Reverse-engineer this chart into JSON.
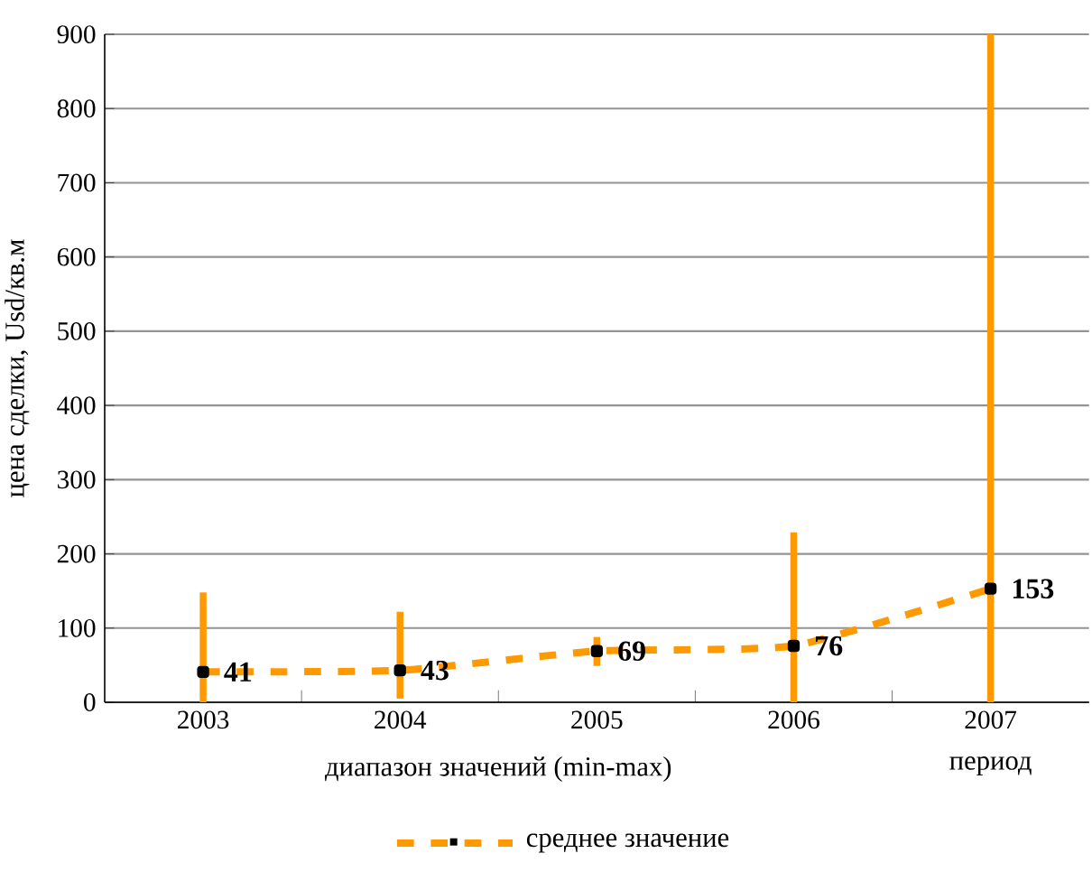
{
  "chart_data": {
    "type": "bar",
    "categories": [
      "2003",
      "2004",
      "2005",
      "2006",
      "2007"
    ],
    "xlabel": "период",
    "ylabel": "цена сделки, Usd/кв.м",
    "annotations": [
      "диапазон значений (min-max)"
    ],
    "ylim": [
      0,
      900
    ],
    "yticks": [
      0,
      100,
      200,
      300,
      400,
      500,
      600,
      700,
      800,
      900
    ],
    "grid": "y",
    "legend": "bottom",
    "series": [
      {
        "color": "#ff9900",
        "base": [
          0,
          5,
          49,
          0,
          0
        ],
        "values": [
          148,
          117,
          39,
          229,
          900
        ]
      },
      {
        "type": "line",
        "name": "среднее значение",
        "color": "#ff9900",
        "values": [
          41,
          43,
          69,
          76,
          153
        ],
        "value_labels": [
          "41",
          "43",
          "69",
          "76",
          "153"
        ],
        "marker": "square",
        "line_style": "dashed"
      }
    ]
  }
}
